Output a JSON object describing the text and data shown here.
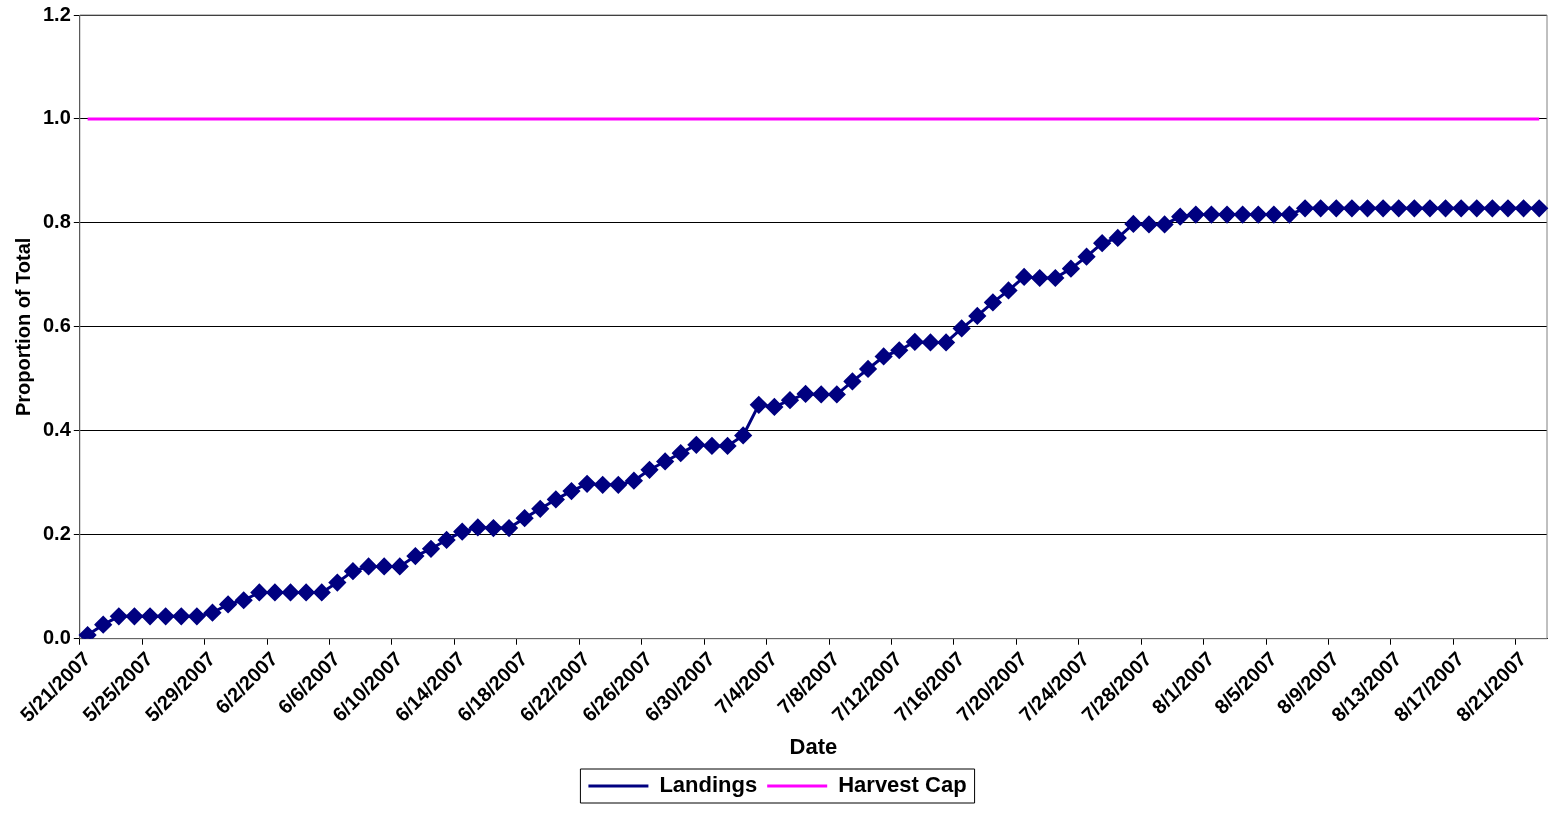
{
  "chart_data": {
    "type": "line",
    "xlabel": "Date",
    "ylabel": "Proportion of Total",
    "categories": [
      "5/21/2007",
      null,
      null,
      null,
      "5/25/2007",
      null,
      null,
      null,
      "5/29/2007",
      null,
      null,
      null,
      "6/2/2007",
      null,
      null,
      null,
      "6/6/2007",
      null,
      null,
      null,
      "6/10/2007",
      null,
      null,
      null,
      "6/14/2007",
      null,
      null,
      null,
      "6/18/2007",
      null,
      null,
      null,
      "6/22/2007",
      null,
      null,
      null,
      "6/26/2007",
      null,
      null,
      null,
      "6/30/2007",
      null,
      null,
      null,
      "7/4/2007",
      null,
      null,
      null,
      "7/8/2007",
      null,
      null,
      null,
      "7/12/2007",
      null,
      null,
      null,
      "7/16/2007",
      null,
      null,
      null,
      "7/20/2007",
      null,
      null,
      null,
      "7/24/2007",
      null,
      null,
      null,
      "7/28/2007",
      null,
      null,
      null,
      "8/1/2007",
      null,
      null,
      null,
      "8/5/2007",
      null,
      null,
      null,
      "8/9/2007",
      null,
      null,
      null,
      "8/13/2007",
      null,
      null,
      null,
      "8/17/2007",
      null,
      null,
      null,
      "8/21/2007",
      null
    ],
    "series": [
      {
        "name": "Landings",
        "color": "#000080",
        "marker": "diamond",
        "values": [
          0.007,
          0.027,
          0.043,
          0.043,
          0.043,
          0.043,
          0.043,
          0.043,
          0.05,
          0.066,
          0.074,
          0.089,
          0.089,
          0.089,
          0.089,
          0.089,
          0.108,
          0.13,
          0.139,
          0.139,
          0.139,
          0.159,
          0.173,
          0.19,
          0.206,
          0.214,
          0.213,
          0.213,
          0.232,
          0.25,
          0.268,
          0.284,
          0.298,
          0.296,
          0.296,
          0.304,
          0.325,
          0.341,
          0.357,
          0.373,
          0.371,
          0.371,
          0.391,
          0.45,
          0.446,
          0.459,
          0.471,
          0.47,
          0.47,
          0.495,
          0.519,
          0.543,
          0.555,
          0.571,
          0.57,
          0.57,
          0.597,
          0.621,
          0.647,
          0.67,
          0.696,
          0.694,
          0.694,
          0.712,
          0.735,
          0.761,
          0.771,
          0.798,
          0.797,
          0.797,
          0.812,
          0.816,
          0.816,
          0.816,
          0.816,
          0.816,
          0.816,
          0.816,
          0.828,
          0.828,
          0.828,
          0.828,
          0.828,
          0.828,
          0.828,
          0.828,
          0.828,
          0.828,
          0.828,
          0.828,
          0.828,
          0.828,
          0.828,
          0.828
        ]
      },
      {
        "name": "Harvest Cap",
        "color": "#ff00ff",
        "marker": "none",
        "values": [
          1,
          1,
          1,
          1,
          1,
          1,
          1,
          1,
          1,
          1,
          1,
          1,
          1,
          1,
          1,
          1,
          1,
          1,
          1,
          1,
          1,
          1,
          1,
          1,
          1,
          1,
          1,
          1,
          1,
          1,
          1,
          1,
          1,
          1,
          1,
          1,
          1,
          1,
          1,
          1,
          1,
          1,
          1,
          1,
          1,
          1,
          1,
          1,
          1,
          1,
          1,
          1,
          1,
          1,
          1,
          1,
          1,
          1,
          1,
          1,
          1,
          1,
          1,
          1,
          1,
          1,
          1,
          1,
          1,
          1,
          1,
          1,
          1,
          1,
          1,
          1,
          1,
          1,
          1,
          1,
          1,
          1,
          1,
          1,
          1,
          1,
          1,
          1,
          1,
          1,
          1,
          1,
          1,
          1
        ]
      }
    ],
    "ylim": [
      0,
      1.2
    ],
    "yticks": [
      {
        "value": 0,
        "label": "0.0"
      },
      {
        "value": 0.2,
        "label": "0.2"
      },
      {
        "value": 0.4,
        "label": "0.4"
      },
      {
        "value": 0.6,
        "label": "0.6"
      },
      {
        "value": 0.8,
        "label": "0.8"
      },
      {
        "value": 1,
        "label": "1.0"
      },
      {
        "value": 1.2,
        "label": "1.2"
      }
    ],
    "grid": "y",
    "legend": "bottom"
  }
}
